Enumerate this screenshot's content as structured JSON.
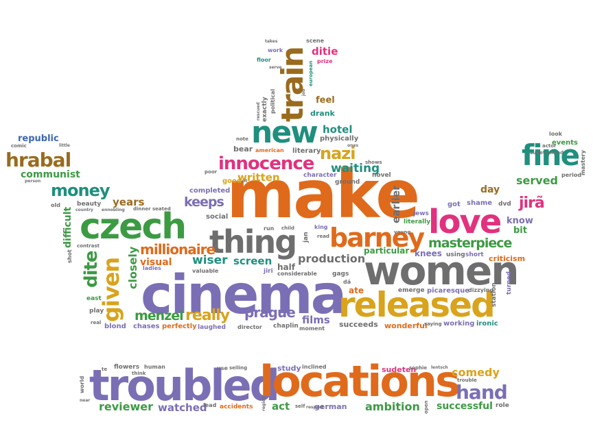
{
  "colors": {
    "orange": "#e06a1b",
    "gray": "#6e6e6e",
    "purple": "#7a6fb5",
    "green": "#3c9a43",
    "pink": "#e2317e",
    "gold": "#d9a31c",
    "teal": "#1f8f7e",
    "brown": "#9a6b1e",
    "blue": "#3b66b0"
  },
  "words": [
    {
      "text": "make",
      "color": "orange"
    },
    {
      "text": "cinema",
      "color": "purple"
    },
    {
      "text": "troubled",
      "color": "purple"
    },
    {
      "text": "locations",
      "color": "orange"
    },
    {
      "text": "women",
      "color": "gray"
    },
    {
      "text": "released",
      "color": "gold"
    },
    {
      "text": "thing",
      "color": "gray"
    },
    {
      "text": "czech",
      "color": "green"
    },
    {
      "text": "love",
      "color": "pink"
    },
    {
      "text": "new",
      "color": "teal"
    },
    {
      "text": "train",
      "color": "brown"
    },
    {
      "text": "barney",
      "color": "orange"
    },
    {
      "text": "fine",
      "color": "teal"
    },
    {
      "text": "given",
      "color": "gold"
    },
    {
      "text": "innocence",
      "color": "pink"
    },
    {
      "text": "hand",
      "color": "purple"
    },
    {
      "text": "hrabal",
      "color": "brown"
    },
    {
      "text": "money",
      "color": "teal"
    },
    {
      "text": "dite",
      "color": "green"
    },
    {
      "text": "nazi",
      "color": "gold"
    },
    {
      "text": "millionaire",
      "color": "orange"
    },
    {
      "text": "masterpiece",
      "color": "green"
    },
    {
      "text": "really",
      "color": "gold"
    },
    {
      "text": "prague",
      "color": "purple"
    },
    {
      "text": "jirã",
      "color": "pink"
    },
    {
      "text": "menzel",
      "color": "green"
    },
    {
      "text": "production",
      "color": "gray"
    },
    {
      "text": "wiser",
      "color": "teal"
    },
    {
      "text": "screen",
      "color": "teal"
    },
    {
      "text": "keeps",
      "color": "purple"
    },
    {
      "text": "comedy",
      "color": "gold"
    },
    {
      "text": "waiting",
      "color": "teal"
    },
    {
      "text": "written",
      "color": "gold"
    },
    {
      "text": "served",
      "color": "green"
    },
    {
      "text": "reviewer",
      "color": "green"
    },
    {
      "text": "watched",
      "color": "purple"
    },
    {
      "text": "ambition",
      "color": "green"
    },
    {
      "text": "successful",
      "color": "green"
    },
    {
      "text": "communist",
      "color": "green"
    },
    {
      "text": "hotel",
      "color": "teal"
    },
    {
      "text": "closely",
      "color": "green"
    },
    {
      "text": "difficult",
      "color": "green"
    },
    {
      "text": "years",
      "color": "brown"
    },
    {
      "text": "visual",
      "color": "orange"
    },
    {
      "text": "films",
      "color": "purple"
    },
    {
      "text": "earlier",
      "color": "gray"
    },
    {
      "text": "act",
      "color": "green"
    },
    {
      "text": "republic",
      "color": "blue"
    },
    {
      "text": "feel",
      "color": "brown"
    },
    {
      "text": "ditie",
      "color": "pink"
    },
    {
      "text": "day",
      "color": "brown"
    },
    {
      "text": "know",
      "color": "purple"
    },
    {
      "text": "bit",
      "color": "green"
    },
    {
      "text": "particular",
      "color": "green"
    },
    {
      "text": "wonderful",
      "color": "orange"
    },
    {
      "text": "succeeds",
      "color": "gray"
    },
    {
      "text": "german",
      "color": "purple"
    },
    {
      "text": "study",
      "color": "purple"
    },
    {
      "text": "sudeten",
      "color": "pink"
    },
    {
      "text": "criticism",
      "color": "orange"
    },
    {
      "text": "half",
      "color": "gray"
    },
    {
      "text": "ate",
      "color": "orange"
    },
    {
      "text": "knees",
      "color": "purple"
    },
    {
      "text": "social",
      "color": "gray"
    },
    {
      "text": "completed",
      "color": "purple"
    },
    {
      "text": "physically",
      "color": "gray"
    },
    {
      "text": "drank",
      "color": "teal"
    },
    {
      "text": "good",
      "color": "gold"
    },
    {
      "text": "bear",
      "color": "gray"
    },
    {
      "text": "literary",
      "color": "gray"
    },
    {
      "text": "character",
      "color": "purple"
    },
    {
      "text": "ground",
      "color": "gray"
    },
    {
      "text": "novel",
      "color": "gray"
    },
    {
      "text": "literally",
      "color": "green"
    },
    {
      "text": "jews",
      "color": "purple"
    },
    {
      "text": "got",
      "color": "purple"
    },
    {
      "text": "shame",
      "color": "purple"
    },
    {
      "text": "dvd",
      "color": "gray"
    },
    {
      "text": "events",
      "color": "green"
    },
    {
      "text": "look",
      "color": "gray"
    },
    {
      "text": "period",
      "color": "gray"
    },
    {
      "text": "mastery",
      "color": "gray"
    },
    {
      "text": "sudetenland",
      "color": "gray"
    },
    {
      "text": "actor",
      "color": "gray"
    },
    {
      "text": "using",
      "color": "gray"
    },
    {
      "text": "short",
      "color": "purple"
    },
    {
      "text": "gags",
      "color": "gray"
    },
    {
      "text": "dá",
      "color": "gray"
    },
    {
      "text": "picaresque",
      "color": "purple"
    },
    {
      "text": "emerge",
      "color": "gray"
    },
    {
      "text": "dizzying",
      "color": "gray"
    },
    {
      "text": "station",
      "color": "gray"
    },
    {
      "text": "turned",
      "color": "purple"
    },
    {
      "text": "ironic",
      "color": "teal"
    },
    {
      "text": "working",
      "color": "purple"
    },
    {
      "text": "saying",
      "color": "gray"
    },
    {
      "text": "moment",
      "color": "gray"
    },
    {
      "text": "chaplin",
      "color": "gray"
    },
    {
      "text": "director",
      "color": "gray"
    },
    {
      "text": "laughed",
      "color": "purple"
    },
    {
      "text": "perfectly",
      "color": "orange"
    },
    {
      "text": "chases",
      "color": "purple"
    },
    {
      "text": "blond",
      "color": "purple"
    },
    {
      "text": "real",
      "color": "gray"
    },
    {
      "text": "play",
      "color": "gray"
    },
    {
      "text": "east",
      "color": "green"
    },
    {
      "text": "contrast",
      "color": "gray"
    },
    {
      "text": "shot",
      "color": "gray"
    },
    {
      "text": "old",
      "color": "gray"
    },
    {
      "text": "beauty",
      "color": "gray"
    },
    {
      "text": "country",
      "color": "gray"
    },
    {
      "text": "ennobling",
      "color": "gray"
    },
    {
      "text": "dinner",
      "color": "gray"
    },
    {
      "text": "seated",
      "color": "gray"
    },
    {
      "text": "ladies",
      "color": "purple"
    },
    {
      "text": "valuable",
      "color": "gray"
    },
    {
      "text": "jiri",
      "color": "purple"
    },
    {
      "text": "considerable",
      "color": "gray"
    },
    {
      "text": "run",
      "color": "gray"
    },
    {
      "text": "child",
      "color": "gray"
    },
    {
      "text": "jan",
      "color": "gray"
    },
    {
      "text": "king",
      "color": "purple"
    },
    {
      "text": "read",
      "color": "gray"
    },
    {
      "text": "young",
      "color": "gray"
    },
    {
      "text": "poor",
      "color": "gray"
    },
    {
      "text": "note",
      "color": "gray"
    },
    {
      "text": "sit",
      "color": "gray"
    },
    {
      "text": "american",
      "color": "orange"
    },
    {
      "text": "ones",
      "color": "gray"
    },
    {
      "text": "shows",
      "color": "gray"
    },
    {
      "text": "comic",
      "color": "gray"
    },
    {
      "text": "little",
      "color": "gray"
    },
    {
      "text": "person",
      "color": "gray"
    },
    {
      "text": "takes",
      "color": "gray"
    },
    {
      "text": "scene",
      "color": "gray"
    },
    {
      "text": "work",
      "color": "purple"
    },
    {
      "text": "floor",
      "color": "teal"
    },
    {
      "text": "serve",
      "color": "gray"
    },
    {
      "text": "prize",
      "color": "pink"
    },
    {
      "text": "european",
      "color": "teal"
    },
    {
      "text": "political",
      "color": "gray"
    },
    {
      "text": "job",
      "color": "gray"
    },
    {
      "text": "exactly",
      "color": "gray"
    },
    {
      "text": "rescued",
      "color": "gray"
    },
    {
      "text": "flowers",
      "color": "gray"
    },
    {
      "text": "human",
      "color": "gray"
    },
    {
      "text": "think",
      "color": "gray"
    },
    {
      "text": "te",
      "color": "gray"
    },
    {
      "text": "world",
      "color": "gray"
    },
    {
      "text": "near",
      "color": "gray"
    },
    {
      "text": "use",
      "color": "gray"
    },
    {
      "text": "selling",
      "color": "gray"
    },
    {
      "text": "lead",
      "color": "gray"
    },
    {
      "text": "accidents",
      "color": "orange"
    },
    {
      "text": "region",
      "color": "gray"
    },
    {
      "text": "self",
      "color": "gray"
    },
    {
      "text": "respect",
      "color": "gray"
    },
    {
      "text": "inclined",
      "color": "gray"
    },
    {
      "text": "sophie",
      "color": "gray"
    },
    {
      "text": "lentsch",
      "color": "gray"
    },
    {
      "text": "trouble",
      "color": "gray"
    },
    {
      "text": "open",
      "color": "gray"
    },
    {
      "text": "role",
      "color": "gray"
    }
  ]
}
